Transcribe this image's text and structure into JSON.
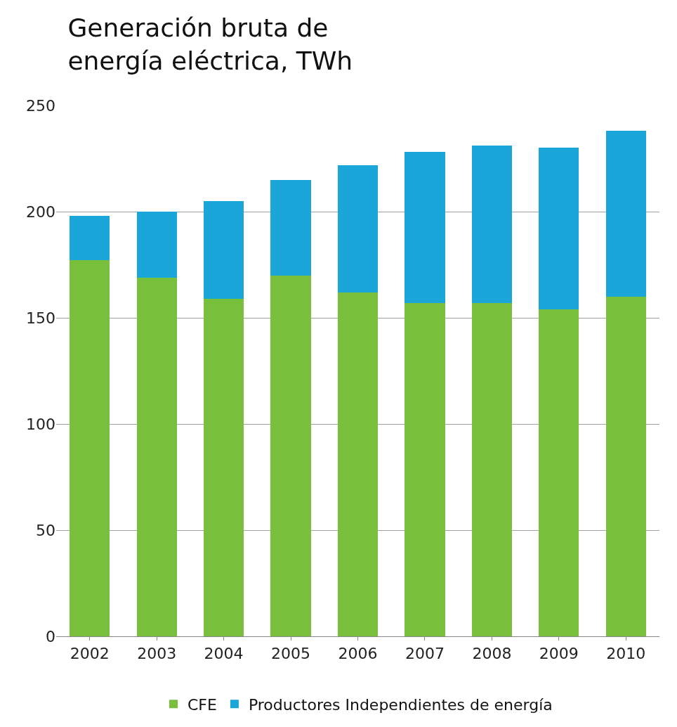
{
  "chart_data": {
    "type": "bar",
    "title": "Generación bruta de\nenergía eléctrica, TWh",
    "stacked": true,
    "categories": [
      "2002",
      "2003",
      "2004",
      "2005",
      "2006",
      "2007",
      "2008",
      "2009",
      "2010"
    ],
    "series": [
      {
        "name": "CFE",
        "color": "#78bf3c",
        "values": [
          177,
          169,
          159,
          170,
          162,
          157,
          157,
          154,
          160
        ]
      },
      {
        "name": "Productores Independientes de energía",
        "color": "#1aa6d9",
        "values": [
          21,
          31,
          46,
          45,
          60,
          71,
          74,
          76,
          78
        ]
      }
    ],
    "ylim": [
      0,
      250
    ],
    "yticks": [
      0,
      50,
      100,
      150,
      200,
      250
    ],
    "grid": "y",
    "legend": "bottom"
  }
}
